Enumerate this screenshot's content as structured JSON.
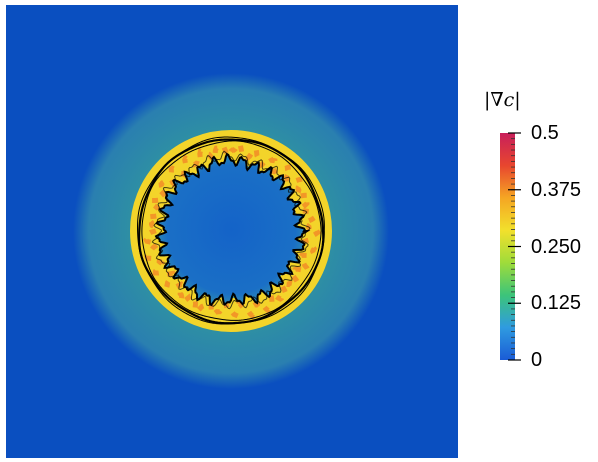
{
  "chart_data": {
    "type": "heatmap",
    "title": "",
    "colorbar": {
      "label": "|∇c|",
      "min": 0,
      "max": 0.5,
      "ticks": [
        {
          "value": 0.5,
          "label": "0.5"
        },
        {
          "value": 0.375,
          "label": "0.375"
        },
        {
          "value": 0.25,
          "label": "0.250"
        },
        {
          "value": 0.125,
          "label": "0.125"
        },
        {
          "value": 0,
          "label": "0"
        }
      ],
      "colormap": [
        "#1a5bd6",
        "#2f9be0",
        "#3cc47a",
        "#9fdc3a",
        "#f2e02c",
        "#f5a623",
        "#e8462f",
        "#c81f5b"
      ],
      "placement": "right"
    },
    "field": {
      "domain": "square",
      "background_value": 0.0,
      "outer_halo_value": 0.09,
      "inner_core_value": 0.03,
      "ring_band_value": 0.3,
      "ring_peak_value": 0.45,
      "has_contour_lines": true,
      "contour_color": "#000000"
    }
  }
}
